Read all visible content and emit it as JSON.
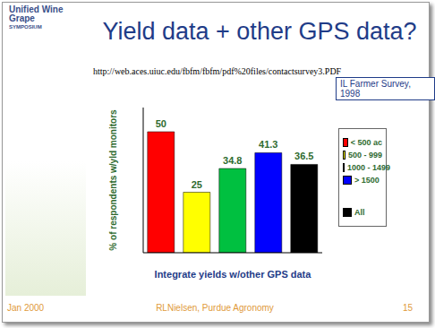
{
  "chart_data": {
    "type": "bar",
    "title": "Yield data + other GPS data?",
    "subtitle": "http://web.aces.uiuc.edu/fbfm/fbfm/pdf%20files/contactsurvey3.PDF",
    "annotations": [
      "IL Farmer Survey, 1998",
      "Unified Wine",
      "Grape",
      "SYMPOSIUM",
      "Jan 2000",
      "RLNielsen, Purdue Agronomy",
      "15"
    ],
    "x_label": "Integrate yields w/other GPS data",
    "y_label": "% of respondents w/yld monitors",
    "categories": [
      "< 500 ac",
      "500 - 999",
      "1000 - 1499",
      "> 1500",
      "All"
    ],
    "values": [
      50,
      25,
      34.8,
      41.3,
      36.5
    ],
    "colors": [
      "#ff0000",
      "#ffff00",
      "#00c040",
      "#0000ff",
      "#000000"
    ],
    "ylim": [
      0,
      60
    ],
    "legend": "right",
    "data_labels": true,
    "tick_labels": false
  }
}
